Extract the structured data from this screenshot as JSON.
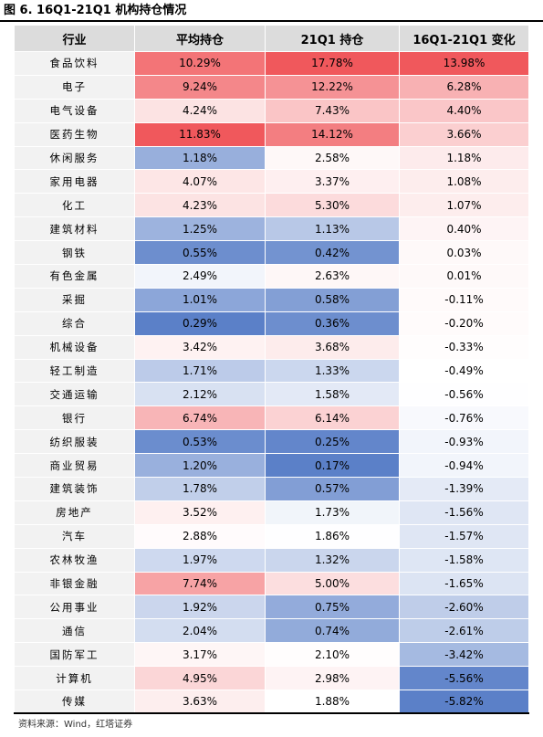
{
  "title": "图 6. 16Q1-21Q1 机构持仓情况",
  "source": "资料来源：Wind，红塔证券",
  "table": {
    "headers": [
      "行业",
      "平均持仓",
      "21Q1 持仓",
      "16Q1-21Q1 变化"
    ],
    "rows": [
      {
        "industry": "食品饮料",
        "avg": "10.29%",
        "q1": "17.78%",
        "chg": "13.98%"
      },
      {
        "industry": "电子",
        "avg": "9.24%",
        "q1": "12.22%",
        "chg": "6.28%"
      },
      {
        "industry": "电气设备",
        "avg": "4.24%",
        "q1": "7.43%",
        "chg": "4.40%"
      },
      {
        "industry": "医药生物",
        "avg": "11.83%",
        "q1": "14.12%",
        "chg": "3.66%"
      },
      {
        "industry": "休闲服务",
        "avg": "1.18%",
        "q1": "2.58%",
        "chg": "1.18%"
      },
      {
        "industry": "家用电器",
        "avg": "4.07%",
        "q1": "3.37%",
        "chg": "1.08%"
      },
      {
        "industry": "化工",
        "avg": "4.23%",
        "q1": "5.30%",
        "chg": "1.07%"
      },
      {
        "industry": "建筑材料",
        "avg": "1.25%",
        "q1": "1.13%",
        "chg": "0.40%"
      },
      {
        "industry": "钢铁",
        "avg": "0.55%",
        "q1": "0.42%",
        "chg": "0.03%"
      },
      {
        "industry": "有色金属",
        "avg": "2.49%",
        "q1": "2.63%",
        "chg": "0.01%"
      },
      {
        "industry": "采掘",
        "avg": "1.01%",
        "q1": "0.58%",
        "chg": "-0.11%"
      },
      {
        "industry": "综合",
        "avg": "0.29%",
        "q1": "0.36%",
        "chg": "-0.20%"
      },
      {
        "industry": "机械设备",
        "avg": "3.42%",
        "q1": "3.68%",
        "chg": "-0.33%"
      },
      {
        "industry": "轻工制造",
        "avg": "1.71%",
        "q1": "1.33%",
        "chg": "-0.49%"
      },
      {
        "industry": "交通运输",
        "avg": "2.12%",
        "q1": "1.58%",
        "chg": "-0.56%"
      },
      {
        "industry": "银行",
        "avg": "6.74%",
        "q1": "6.14%",
        "chg": "-0.76%"
      },
      {
        "industry": "纺织服装",
        "avg": "0.53%",
        "q1": "0.25%",
        "chg": "-0.93%"
      },
      {
        "industry": "商业贸易",
        "avg": "1.20%",
        "q1": "0.17%",
        "chg": "-0.94%"
      },
      {
        "industry": "建筑装饰",
        "avg": "1.78%",
        "q1": "0.57%",
        "chg": "-1.39%"
      },
      {
        "industry": "房地产",
        "avg": "3.52%",
        "q1": "1.73%",
        "chg": "-1.56%"
      },
      {
        "industry": "汽车",
        "avg": "2.88%",
        "q1": "1.86%",
        "chg": "-1.57%"
      },
      {
        "industry": "农林牧渔",
        "avg": "1.97%",
        "q1": "1.32%",
        "chg": "-1.58%"
      },
      {
        "industry": "非银金融",
        "avg": "7.74%",
        "q1": "5.00%",
        "chg": "-1.65%"
      },
      {
        "industry": "公用事业",
        "avg": "1.92%",
        "q1": "0.75%",
        "chg": "-2.60%"
      },
      {
        "industry": "通信",
        "avg": "2.04%",
        "q1": "0.74%",
        "chg": "-2.61%"
      },
      {
        "industry": "国防军工",
        "avg": "3.17%",
        "q1": "2.10%",
        "chg": "-3.42%"
      },
      {
        "industry": "计算机",
        "avg": "4.95%",
        "q1": "2.98%",
        "chg": "-5.56%"
      },
      {
        "industry": "传媒",
        "avg": "3.63%",
        "q1": "1.88%",
        "chg": "-5.82%"
      }
    ]
  },
  "colors": {
    "header_bg": "#dcdcdc",
    "category_bg": "#f2f2f2",
    "high": "#f0585c",
    "mid": "#ffffff",
    "low": "#5b80c8"
  }
}
